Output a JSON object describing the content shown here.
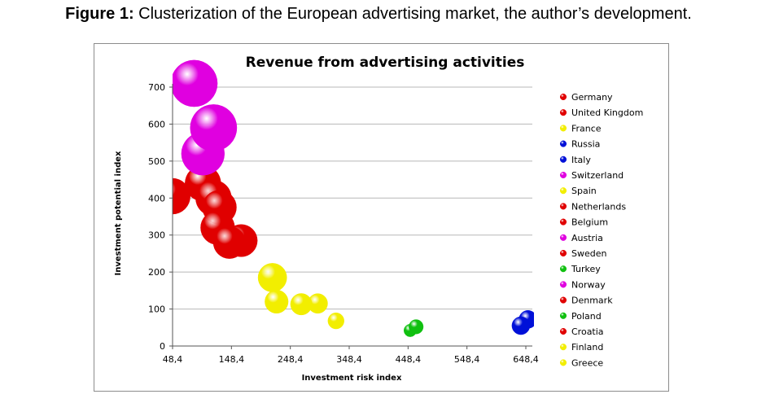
{
  "figure": {
    "caption_prefix": "Figure 1:",
    "caption_text": " Clusterization of the European advertising market, the author’s development."
  },
  "colors": {
    "red": "#e00000",
    "yellow": "#f2ee00",
    "blue": "#0010d8",
    "magenta": "#e000e0",
    "green": "#10c010"
  },
  "chart_data": {
    "type": "scatter",
    "title": "Revenue from advertising activities",
    "xlabel": "Investment risk index",
    "ylabel": "Investment potential index",
    "xlim": [
      48.4,
      648.4
    ],
    "ylim": [
      0,
      700
    ],
    "x_ticks": [
      "48,4",
      "148,4",
      "248,4",
      "348,4",
      "448,4",
      "548,4",
      "648,4"
    ],
    "y_ticks": [
      "0",
      "100",
      "200",
      "300",
      "400",
      "500",
      "600",
      "700"
    ],
    "grid": "horizontal",
    "legend_position": "right",
    "series": [
      {
        "name": "Germany",
        "color": "red",
        "x": 48,
        "y": 405,
        "r": 1.0
      },
      {
        "name": "United Kingdom",
        "color": "red",
        "x": 100,
        "y": 440,
        "r": 1.0
      },
      {
        "name": "France",
        "color": "yellow",
        "x": 218,
        "y": 185,
        "r": 0.8
      },
      {
        "name": "Russia",
        "color": "blue",
        "x": 652,
        "y": 72,
        "r": 0.5
      },
      {
        "name": "Italy",
        "color": "blue",
        "x": 640,
        "y": 55,
        "r": 0.5
      },
      {
        "name": "Switzerland",
        "color": "magenta",
        "x": 85,
        "y": 710,
        "r": 1.3
      },
      {
        "name": "Spain",
        "color": "yellow",
        "x": 225,
        "y": 120,
        "r": 0.65
      },
      {
        "name": "Netherlands",
        "color": "red",
        "x": 118,
        "y": 400,
        "r": 1.0
      },
      {
        "name": "Belgium",
        "color": "red",
        "x": 128,
        "y": 375,
        "r": 0.95
      },
      {
        "name": "Austria",
        "color": "magenta",
        "x": 100,
        "y": 520,
        "r": 1.2
      },
      {
        "name": "Sweden",
        "color": "red",
        "x": 125,
        "y": 320,
        "r": 0.95
      },
      {
        "name": "Turkey",
        "color": "green",
        "x": 452,
        "y": 42,
        "r": 0.35
      },
      {
        "name": "Norway",
        "color": "magenta",
        "x": 118,
        "y": 590,
        "r": 1.3
      },
      {
        "name": "Denmark",
        "color": "red",
        "x": 165,
        "y": 285,
        "r": 0.9
      },
      {
        "name": "Poland",
        "color": "green",
        "x": 462,
        "y": 52,
        "r": 0.4
      },
      {
        "name": "Croatia",
        "color": "red",
        "x": 145,
        "y": 280,
        "r": 0.9
      },
      {
        "name": "Finland",
        "color": "yellow",
        "x": 295,
        "y": 115,
        "r": 0.55
      },
      {
        "name": "Greece",
        "color": "yellow",
        "x": 267,
        "y": 113,
        "r": 0.6
      },
      {
        "name": "",
        "color": "yellow",
        "x": 326,
        "y": 68,
        "r": 0.45
      }
    ]
  }
}
